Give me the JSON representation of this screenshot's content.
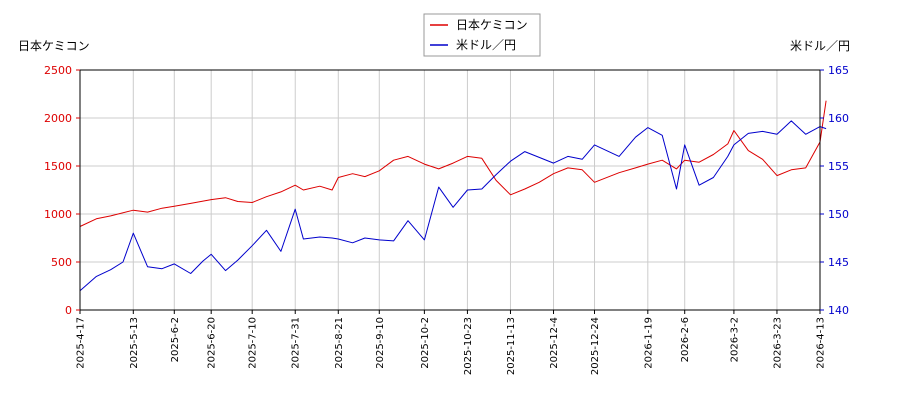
{
  "chart_data": {
    "type": "line",
    "left_axis_label": "日本ケミコン",
    "right_axis_label": "米ドル／円",
    "legend": [
      "日本ケミコン",
      "米ドル／円"
    ],
    "legend_position": "top-center",
    "grid": true,
    "colors": {
      "left_series": "#dd0000",
      "right_series": "#0000cc",
      "grid": "#cccccc",
      "frame": "#000000"
    },
    "x_tick_labels": [
      "2025-4-17",
      "2025-5-13",
      "2025-6-2",
      "2025-6-20",
      "2025-7-10",
      "2025-7-31",
      "2025-8-21",
      "2025-9-10",
      "2025-10-2",
      "2025-10-23",
      "2025-11-13",
      "2025-12-4",
      "2025-12-24",
      "2026-1-19",
      "2026-2-6",
      "2026-3-2",
      "2026-3-23",
      "2026-4-13"
    ],
    "y_left": {
      "lim": [
        0,
        2500
      ],
      "ticks": [
        0,
        500,
        1000,
        1500,
        2000,
        2500
      ]
    },
    "y_right": {
      "lim": [
        140,
        165
      ],
      "ticks": [
        140,
        145,
        150,
        155,
        160,
        165
      ]
    },
    "series": [
      {
        "name": "日本ケミコン",
        "axis": "left",
        "x": [
          "2025-4-17",
          "2025-4-25",
          "2025-5-2",
          "2025-5-13",
          "2025-5-20",
          "2025-5-27",
          "2025-6-2",
          "2025-6-10",
          "2025-6-20",
          "2025-6-27",
          "2025-7-3",
          "2025-7-10",
          "2025-7-17",
          "2025-7-24",
          "2025-7-31",
          "2025-8-4",
          "2025-8-12",
          "2025-8-18",
          "2025-8-21",
          "2025-8-28",
          "2025-9-3",
          "2025-9-10",
          "2025-9-17",
          "2025-9-24",
          "2025-10-2",
          "2025-10-9",
          "2025-10-16",
          "2025-10-23",
          "2025-10-30",
          "2025-11-6",
          "2025-11-13",
          "2025-11-20",
          "2025-11-27",
          "2025-12-4",
          "2025-12-11",
          "2025-12-18",
          "2025-12-24",
          "2026-1-5",
          "2026-1-13",
          "2026-1-19",
          "2026-1-26",
          "2026-2-2",
          "2026-2-6",
          "2026-2-13",
          "2026-2-20",
          "2026-2-27",
          "2026-3-2",
          "2026-3-9",
          "2026-3-16",
          "2026-3-23",
          "2026-3-30",
          "2026-4-6",
          "2026-4-13",
          "2026-4-16"
        ],
        "values": [
          870,
          950,
          980,
          1040,
          1020,
          1060,
          1080,
          1110,
          1150,
          1170,
          1130,
          1120,
          1180,
          1230,
          1300,
          1250,
          1290,
          1250,
          1380,
          1420,
          1390,
          1450,
          1560,
          1600,
          1520,
          1470,
          1530,
          1600,
          1580,
          1350,
          1200,
          1260,
          1330,
          1420,
          1480,
          1460,
          1330,
          1430,
          1480,
          1520,
          1560,
          1470,
          1560,
          1540,
          1620,
          1730,
          1870,
          1660,
          1570,
          1400,
          1460,
          1480,
          1750,
          2180
        ]
      },
      {
        "name": "米ドル／円",
        "axis": "right",
        "x": [
          "2025-4-17",
          "2025-4-25",
          "2025-5-2",
          "2025-5-8",
          "2025-5-13",
          "2025-5-20",
          "2025-5-27",
          "2025-6-2",
          "2025-6-10",
          "2025-6-16",
          "2025-6-20",
          "2025-6-27",
          "2025-7-3",
          "2025-7-10",
          "2025-7-17",
          "2025-7-24",
          "2025-7-31",
          "2025-8-4",
          "2025-8-12",
          "2025-8-18",
          "2025-8-21",
          "2025-8-28",
          "2025-9-3",
          "2025-9-10",
          "2025-9-17",
          "2025-9-24",
          "2025-10-2",
          "2025-10-9",
          "2025-10-16",
          "2025-10-23",
          "2025-10-30",
          "2025-11-6",
          "2025-11-13",
          "2025-11-20",
          "2025-11-27",
          "2025-12-4",
          "2025-12-11",
          "2025-12-18",
          "2025-12-24",
          "2026-1-5",
          "2026-1-13",
          "2026-1-19",
          "2026-1-26",
          "2026-2-2",
          "2026-2-6",
          "2026-2-13",
          "2026-2-20",
          "2026-2-27",
          "2026-3-2",
          "2026-3-9",
          "2026-3-16",
          "2026-3-23",
          "2026-3-30",
          "2026-4-6",
          "2026-4-13",
          "2026-4-16"
        ],
        "values": [
          142.0,
          143.5,
          144.2,
          145.0,
          148.0,
          144.5,
          144.3,
          144.8,
          143.8,
          145.1,
          145.8,
          144.1,
          145.2,
          146.7,
          148.3,
          146.1,
          150.5,
          147.4,
          147.6,
          147.5,
          147.4,
          147.0,
          147.5,
          147.3,
          147.2,
          149.3,
          147.3,
          152.8,
          150.7,
          152.5,
          152.6,
          154.1,
          155.5,
          156.5,
          155.9,
          155.3,
          156.0,
          155.7,
          157.2,
          156.0,
          158.0,
          159.0,
          158.2,
          152.6,
          157.2,
          153.0,
          153.8,
          156.0,
          157.2,
          158.4,
          158.6,
          158.3,
          159.7,
          158.3,
          159.1,
          158.9
        ]
      }
    ]
  }
}
